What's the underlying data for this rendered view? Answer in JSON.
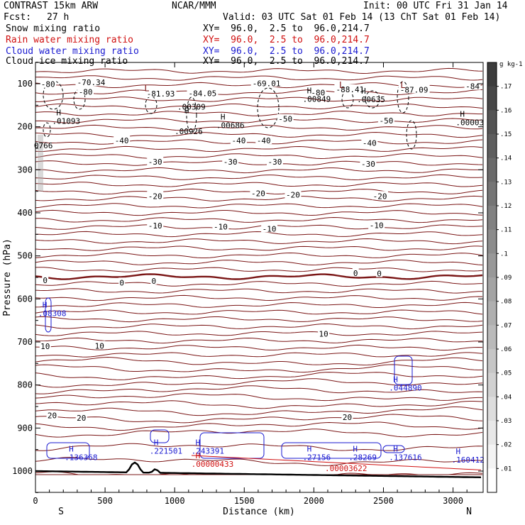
{
  "header": {
    "left_title": "CONTRAST 15km ARW",
    "center_title": "NCAR/MMM",
    "init": "Init: 00 UTC Fri 31 Jan 14",
    "fcst_label": "Fcst:",
    "fcst_value": "27 h",
    "valid": "Valid: 03 UTC Sat 01 Feb 14 (13 ChT Sat 01 Feb 14)",
    "fields": [
      {
        "name": "Snow mixing ratio",
        "xy": "XY=  96.0,  2.5 to  96.0,214.7",
        "color": "#000000"
      },
      {
        "name": "Rain water mixing ratio",
        "xy": "XY=  96.0,  2.5 to  96.0,214.7",
        "color": "#d01010"
      },
      {
        "name": "Cloud water mixing ratio",
        "xy": "XY=  96.0,  2.5 to  96.0,214.7",
        "color": "#1a1ad0"
      },
      {
        "name": "Cloud ice mixing ratio",
        "xy": "XY=  96.0,  2.5 to  96.0,214.7",
        "color": "#000000"
      }
    ]
  },
  "chart_data": {
    "type": "cross-section contour",
    "xlabel": "Distance (km)",
    "ylabel": "Pressure (hPa)",
    "xlim": [
      0,
      3200
    ],
    "ylim": [
      1050,
      50
    ],
    "x_ticks": [
      0,
      500,
      1000,
      1500,
      2000,
      2500,
      3000
    ],
    "y_ticks": [
      100,
      200,
      300,
      400,
      500,
      600,
      700,
      800,
      900,
      1000
    ],
    "x_end_labels": {
      "left": "S",
      "right": "N"
    },
    "colorbar": {
      "unit": "g kg-1",
      "ticks": [
        ".17",
        ".16",
        ".15",
        ".14",
        ".13",
        ".12",
        ".11",
        ".1",
        ".09",
        ".08",
        ".07",
        ".06",
        ".05",
        ".04",
        ".03",
        ".02",
        ".01"
      ]
    },
    "temperature_labels": [
      {
        "x": 90,
        "p": 101,
        "t": "-80"
      },
      {
        "x": 400,
        "p": 97,
        "t": "-70.34"
      },
      {
        "x": 360,
        "p": 119,
        "t": "-80"
      },
      {
        "x": 900,
        "p": 123,
        "t": "-81.93"
      },
      {
        "x": 1200,
        "p": 122,
        "t": "-84.05"
      },
      {
        "x": 1660,
        "p": 99,
        "t": "-69.01"
      },
      {
        "x": 2030,
        "p": 121,
        "t": "-80"
      },
      {
        "x": 2260,
        "p": 113,
        "t": "-88.41"
      },
      {
        "x": 2720,
        "p": 114,
        "t": "-87.09"
      },
      {
        "x": 3140,
        "p": 106,
        "t": "-84"
      },
      {
        "x": 1795,
        "p": 182,
        "t": "-50"
      },
      {
        "x": 2520,
        "p": 186,
        "t": "-50"
      },
      {
        "x": 620,
        "p": 232,
        "t": "-40"
      },
      {
        "x": 1460,
        "p": 232,
        "t": "-40"
      },
      {
        "x": 1640,
        "p": 232,
        "t": "-40"
      },
      {
        "x": 2400,
        "p": 238,
        "t": "-40"
      },
      {
        "x": 860,
        "p": 281,
        "t": "-30"
      },
      {
        "x": 1400,
        "p": 281,
        "t": "-30"
      },
      {
        "x": 1720,
        "p": 281,
        "t": "-30"
      },
      {
        "x": 2390,
        "p": 286,
        "t": "-30"
      },
      {
        "x": 860,
        "p": 361,
        "t": "-20"
      },
      {
        "x": 1600,
        "p": 355,
        "t": "-20"
      },
      {
        "x": 1850,
        "p": 358,
        "t": "-20"
      },
      {
        "x": 2475,
        "p": 361,
        "t": "-20"
      },
      {
        "x": 860,
        "p": 430,
        "t": "-10"
      },
      {
        "x": 1330,
        "p": 432,
        "t": "-10"
      },
      {
        "x": 1680,
        "p": 437,
        "t": "-10"
      },
      {
        "x": 2450,
        "p": 429,
        "t": "-10"
      },
      {
        "x": 70,
        "p": 557,
        "t": "0"
      },
      {
        "x": 620,
        "p": 562,
        "t": "0"
      },
      {
        "x": 850,
        "p": 558,
        "t": "0"
      },
      {
        "x": 2300,
        "p": 540,
        "t": "0"
      },
      {
        "x": 2470,
        "p": 541,
        "t": "0"
      },
      {
        "x": 2070,
        "p": 681,
        "t": "10"
      },
      {
        "x": 70,
        "p": 710,
        "t": "10"
      },
      {
        "x": 460,
        "p": 709,
        "t": "10"
      },
      {
        "x": 120,
        "p": 871,
        "t": "20"
      },
      {
        "x": 330,
        "p": 876,
        "t": "20"
      },
      {
        "x": 2240,
        "p": 875,
        "t": "20"
      }
    ],
    "maxima": [
      {
        "x": 150,
        "p": 178,
        "hl": "H",
        "v": ".01093",
        "color": "#000000"
      },
      {
        "x": 1070,
        "p": 173,
        "hl": "H",
        "v": "",
        "color": "#000000"
      },
      {
        "x": 1050,
        "p": 145,
        "hl": "",
        "v": ".00309",
        "color": "#000000"
      },
      {
        "x": 1030,
        "p": 202,
        "hl": "",
        "v": ".00926",
        "color": "#000000"
      },
      {
        "x": 1330,
        "p": 188,
        "hl": "H",
        "v": ".00686",
        "color": "#000000"
      },
      {
        "x": 1950,
        "p": 127,
        "hl": "H",
        "v": ".00849",
        "color": "#000000"
      },
      {
        "x": 2340,
        "p": 128,
        "hl": "H",
        "v": ".00635",
        "color": "#000000"
      },
      {
        "x": 3050,
        "p": 182,
        "hl": "H",
        "v": ".00003",
        "color": "#000000"
      },
      {
        "x": 20,
        "p": 235,
        "hl": "",
        "v": "0766",
        "color": "#000000"
      },
      {
        "x": 50,
        "p": 625,
        "hl": "H",
        "v": ".08308",
        "color": "#1a1ad0"
      },
      {
        "x": 2570,
        "p": 798,
        "hl": "H",
        "v": ".044890",
        "color": "#1a1ad0"
      },
      {
        "x": 240,
        "p": 960,
        "hl": "H",
        "v": ".136368",
        "color": "#1a1ad0"
      },
      {
        "x": 850,
        "p": 945,
        "hl": "H",
        "v": ".221501",
        "color": "#1a1ad0"
      },
      {
        "x": 1150,
        "p": 945,
        "hl": "H",
        "v": ".243391",
        "color": "#1a1ad0"
      },
      {
        "x": 1950,
        "p": 960,
        "hl": "H",
        "v": ".27156",
        "color": "#1a1ad0"
      },
      {
        "x": 2280,
        "p": 960,
        "hl": "H",
        "v": ".28269",
        "color": "#1a1ad0"
      },
      {
        "x": 2570,
        "p": 960,
        "hl": "H",
        "v": ".137616",
        "color": "#1a1ad0"
      },
      {
        "x": 3020,
        "p": 965,
        "hl": "H",
        "v": ".160412",
        "color": "#1a1ad0"
      },
      {
        "x": 1150,
        "p": 975,
        "hl": "H",
        "v": ".00000433",
        "color": "#d01010"
      },
      {
        "x": 2110,
        "p": 985,
        "hl": "",
        "v": ".00003622",
        "color": "#d01010"
      }
    ],
    "low_markers": [
      {
        "x": 800,
        "p": 111,
        "t": "L"
      },
      {
        "x": 2200,
        "p": 103,
        "t": "L"
      },
      {
        "x": 2640,
        "p": 103,
        "t": "L"
      }
    ],
    "colors": {
      "isotherm": "#7a1515",
      "snow": "#000000",
      "rain": "#d01010",
      "cloud_water": "#1a1ad0",
      "cloud_ice": "#000000",
      "terrain": "#000000"
    }
  }
}
